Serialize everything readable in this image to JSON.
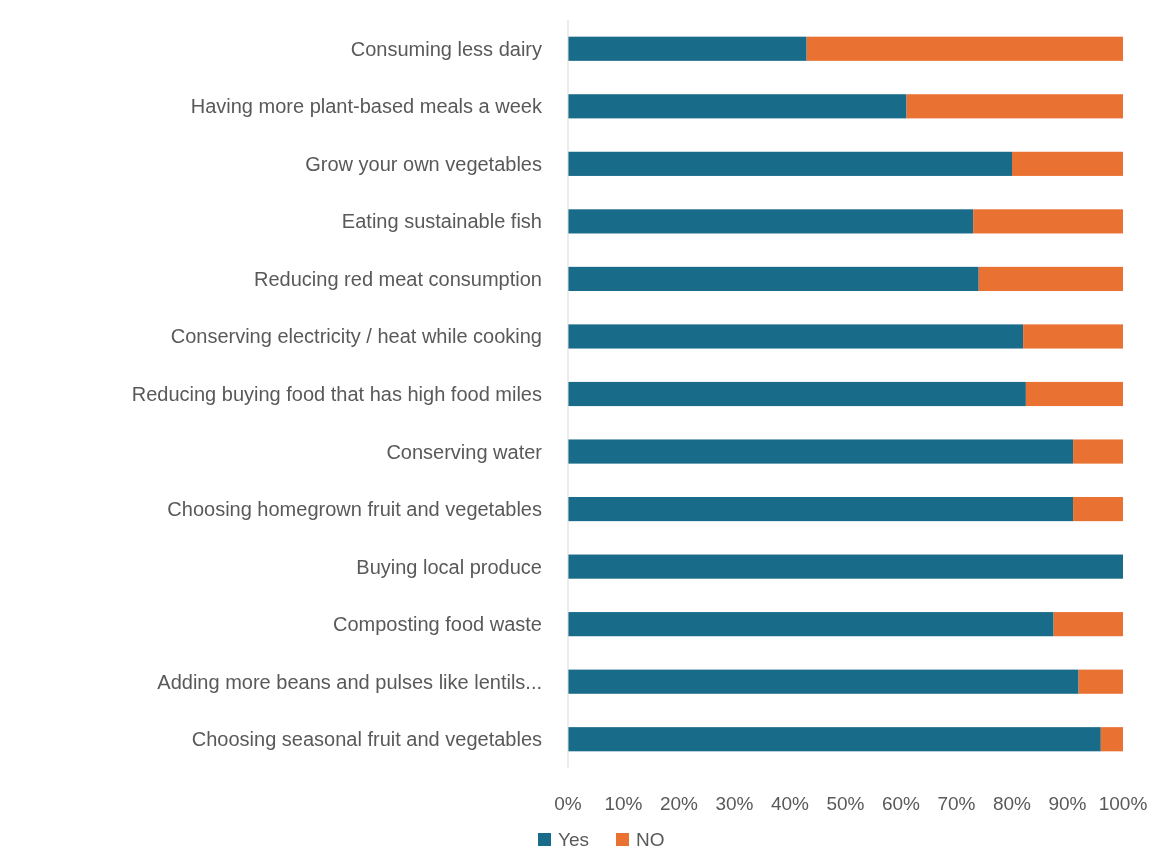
{
  "chart_data": {
    "type": "bar",
    "orientation": "horizontal",
    "stacked": true,
    "legend": "bottom",
    "grid": false,
    "categories": [
      "Consuming less dairy",
      "Having more plant-based meals a week",
      "Grow your own vegetables",
      "Eating sustainable fish",
      "Reducing red meat consumption",
      "Conserving electricity / heat while cooking",
      "Reducing buying food that has high food miles",
      "Conserving water",
      "Choosing homegrown fruit and vegetables",
      "Buying local produce",
      "Composting food waste",
      "Adding more beans and pulses like lentils...",
      "Choosing seasonal fruit and vegetables"
    ],
    "series": [
      {
        "name": "Yes",
        "color": "#196b8a",
        "values": [
          43,
          61,
          80,
          73,
          74,
          82,
          82.5,
          91,
          91,
          100,
          87.5,
          92,
          96
        ]
      },
      {
        "name": "NO",
        "color": "#e97132",
        "values": [
          57,
          39,
          20,
          27,
          26,
          18,
          17.5,
          9,
          9,
          0,
          12.5,
          8,
          4
        ]
      }
    ],
    "xlim": [
      0,
      100
    ],
    "xticks": [
      {
        "value": 0,
        "label": "0%"
      },
      {
        "value": 10,
        "label": "10%"
      },
      {
        "value": 20,
        "label": "20%"
      },
      {
        "value": 30,
        "label": "30%"
      },
      {
        "value": 40,
        "label": "40%"
      },
      {
        "value": 50,
        "label": "50%"
      },
      {
        "value": 60,
        "label": "60%"
      },
      {
        "value": 70,
        "label": "70%"
      },
      {
        "value": 80,
        "label": "80%"
      },
      {
        "value": 90,
        "label": "90%"
      },
      {
        "value": 100,
        "label": "100%"
      }
    ]
  }
}
